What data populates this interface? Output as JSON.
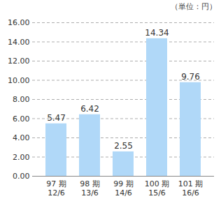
{
  "chart_data": {
    "type": "bar",
    "annotations": [
      "（単位：円）"
    ],
    "categories": [
      "97 期\n12/6",
      "98 期\n13/6",
      "99 期\n14/6",
      "100 期\n15/6",
      "101 期\n16/6"
    ],
    "values": [
      5.47,
      6.42,
      2.55,
      14.34,
      9.76
    ],
    "color": "#b0d8f8",
    "ylim": [
      0,
      16
    ],
    "yticks": [
      {
        "value": 0,
        "label": "0.00"
      },
      {
        "value": 2,
        "label": "2.00"
      },
      {
        "value": 4,
        "label": "4.00"
      },
      {
        "value": 6,
        "label": "6.00"
      },
      {
        "value": 8,
        "label": "8.00"
      },
      {
        "value": 10,
        "label": "10.00"
      },
      {
        "value": 12,
        "label": "12.00"
      },
      {
        "value": 14,
        "label": "14.00"
      },
      {
        "value": 16,
        "label": "16.00"
      }
    ],
    "grid": true,
    "data_labels": true
  }
}
